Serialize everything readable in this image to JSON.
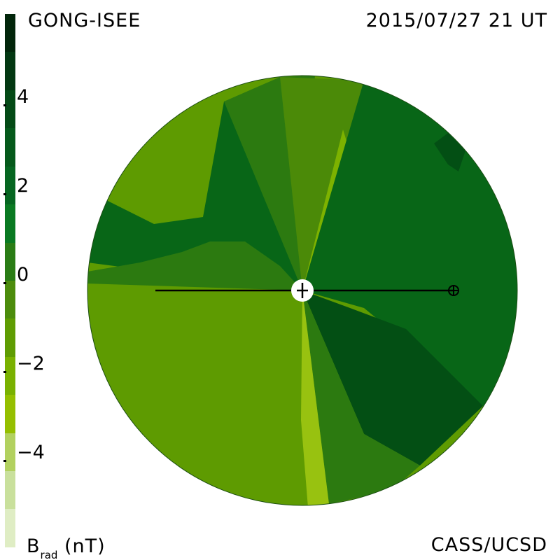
{
  "header": {
    "source": "GONG-ISEE",
    "timestamp": "2015/07/27 21 UT"
  },
  "footer": {
    "credit": "CASS/UCSD",
    "unit_main": "B",
    "unit_sub": "rad",
    "unit_rest": " (nT)"
  },
  "colorbar": {
    "range": [
      -6,
      6
    ],
    "ticks": [
      {
        "label": "4",
        "value": 4
      },
      {
        "label": "2",
        "value": 2
      },
      {
        "label": "0",
        "value": 0
      },
      {
        "label": "−2",
        "value": -2
      },
      {
        "label": "−4",
        "value": -4
      }
    ],
    "colors_top_to_bottom": [
      "#02260b",
      "#033812",
      "#044a16",
      "#05591b",
      "#066621",
      "#0a7a22",
      "#2a7c15",
      "#4c8c0c",
      "#5f9c02",
      "#7ab100",
      "#95bf00",
      "#b2d15f",
      "#c9e09c",
      "#dfedc4"
    ]
  },
  "map": {
    "field_colors": {
      "strong_positive": "#034f14",
      "positive": "#086617",
      "weak_positive": "#2c7a10",
      "neutral": "#4b8a08",
      "weak_negative": "#5e9b01",
      "negative": "#7db200",
      "strong_negative": "#98c210"
    },
    "earth_marker": "earth-symbol",
    "sun_marker": "sun-center"
  }
}
